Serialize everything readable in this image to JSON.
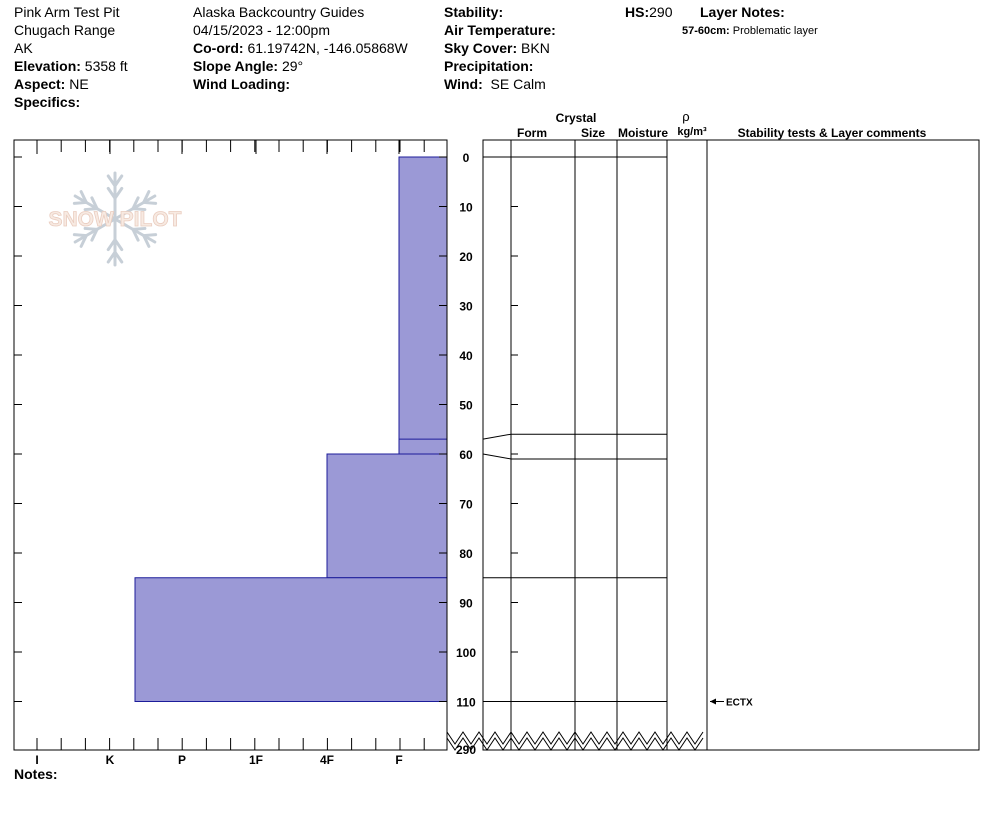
{
  "header": {
    "col1": {
      "pit_name": "Pink Arm Test Pit",
      "range": "Chugach Range",
      "state": "AK",
      "elevation_label": "Elevation:",
      "elevation": "5358 ft",
      "aspect_label": "Aspect:",
      "aspect": "NE",
      "specifics_label": "Specifics:"
    },
    "col2": {
      "org": "Alaska Backcountry Guides",
      "datetime": "04/15/2023 - 12:00pm",
      "coord_label": "Co-ord:",
      "coord": "61.19742N, -146.05868W",
      "slope_label": "Slope Angle:",
      "slope": "29°",
      "wind_loading_label": "Wind Loading:"
    },
    "col3": {
      "stability_label": "Stability:",
      "air_temp_label": "Air Temperature:",
      "sky_label": "Sky Cover:",
      "sky": "BKN",
      "precip_label": "Precipitation:",
      "wind_label": "Wind:",
      "wind": "SE Calm"
    },
    "hs_label": "HS:",
    "hs": "290",
    "layer_notes_label": "Layer Notes:",
    "layer_note_depth": "57-60cm:",
    "layer_note_text": "Problematic layer"
  },
  "notes_label": "Notes:",
  "logo_text": "SNOW PILOT",
  "table_headers": {
    "crystal": "Crystal",
    "form": "Form",
    "size": "Size",
    "moisture": "Moisture",
    "rho": "ρ",
    "density_unit": "kg/m³",
    "stability": "Stability tests & Layer comments"
  },
  "chart_data": {
    "type": "bar",
    "subtype": "snowpit-hardness-profile",
    "y_axis": {
      "reversed": true,
      "ticks": [
        0,
        10,
        20,
        30,
        40,
        50,
        60,
        70,
        80,
        90,
        100,
        110
      ],
      "break_to": 290,
      "unit": "cm"
    },
    "x_axis": {
      "categories": [
        "I",
        "K",
        "P",
        "1F",
        "4F",
        "F"
      ]
    },
    "hardness_layers": [
      {
        "top": 0,
        "bottom": 60,
        "hardness": "F"
      },
      {
        "top": 60,
        "bottom": 85,
        "hardness": "4F"
      },
      {
        "top": 85,
        "bottom": 110,
        "hardness": "P+"
      }
    ],
    "layer_boundaries": [
      0,
      57,
      60,
      85,
      110
    ],
    "problem_layer": {
      "top": 57,
      "bottom": 60
    },
    "stability_tests": [
      {
        "depth": 110,
        "result": "ECTX"
      }
    ]
  }
}
